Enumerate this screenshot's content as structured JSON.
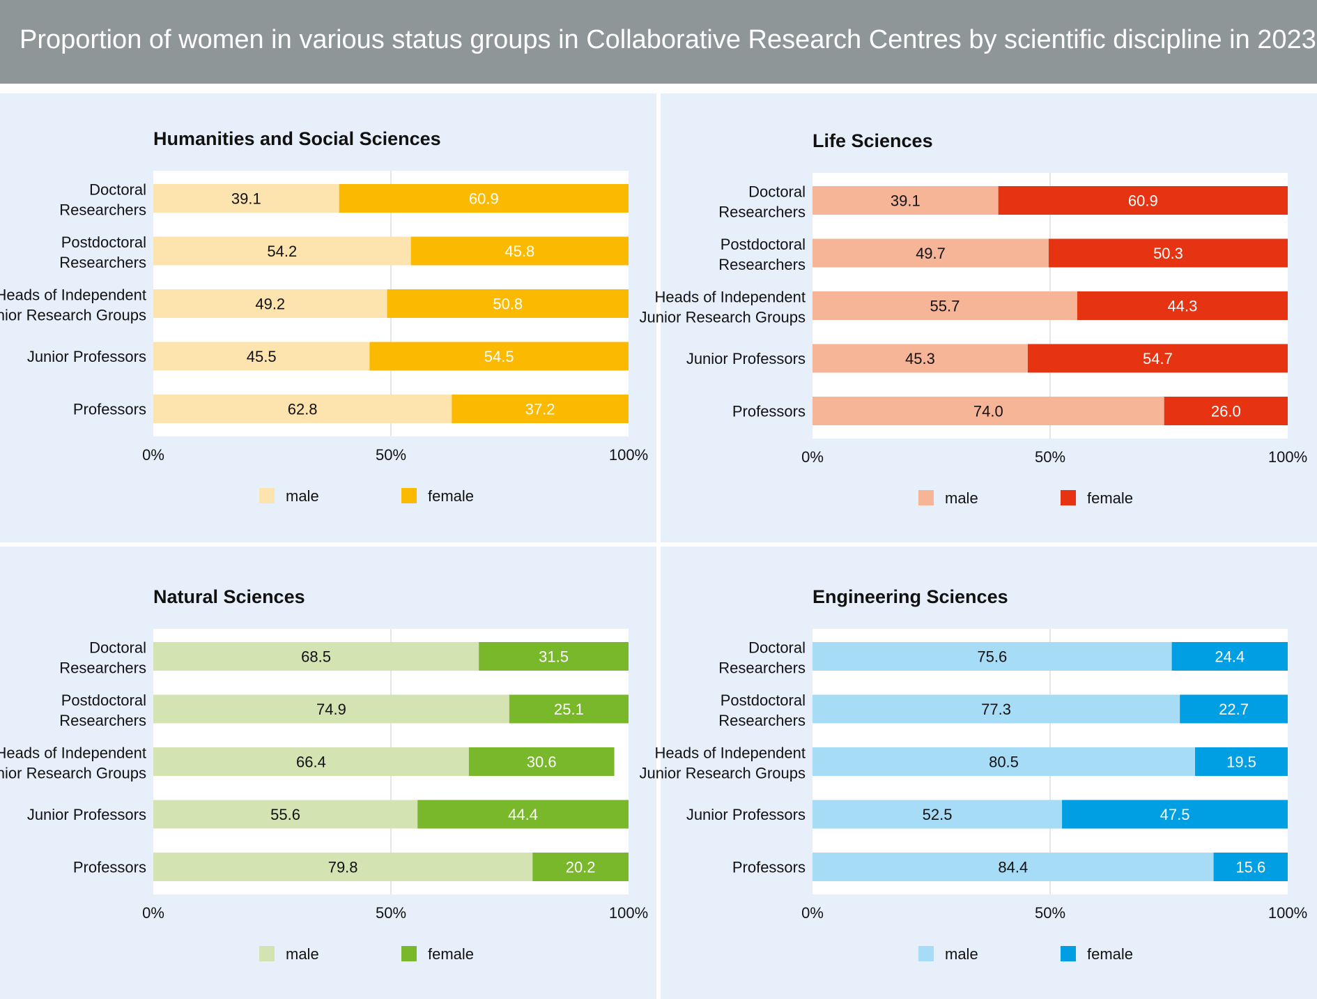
{
  "title": "Proportion of women in various status groups in Collaborative Research Centres by scientific discipline in 2023",
  "chart_data": [
    {
      "type": "bar",
      "stacked": true,
      "orientation": "horizontal",
      "title": "Humanities and Social Sciences",
      "categories": [
        "Doctoral\nResearchers",
        "Postdoctoral\nResearchers",
        "Heads of Independent\nJunior Research Groups",
        "Junior Professors",
        "Professors"
      ],
      "series": [
        {
          "name": "male",
          "color": "#fde3ad",
          "values": [
            39.1,
            54.2,
            49.2,
            45.5,
            62.8
          ],
          "labels": [
            "39.1",
            "54.2",
            "49.2",
            "45.5",
            "62.8"
          ]
        },
        {
          "name": "female",
          "color": "#fbb900",
          "values": [
            60.9,
            45.8,
            50.8,
            54.5,
            37.2
          ],
          "labels": [
            "60.9",
            "45.8",
            "50.8",
            "54.5",
            "37.2"
          ]
        }
      ],
      "xlim": [
        0,
        100
      ],
      "xticks": [
        "0%",
        "50%",
        "100%"
      ],
      "legend": "bottom",
      "grid": true
    },
    {
      "type": "bar",
      "stacked": true,
      "orientation": "horizontal",
      "title": "Life Sciences",
      "categories": [
        "Doctoral\nResearchers",
        "Postdoctoral\nResearchers",
        "Heads of Independent\nJunior Research Groups",
        "Junior Professors",
        "Professors"
      ],
      "series": [
        {
          "name": "male",
          "color": "#f7b597",
          "values": [
            39.1,
            49.7,
            55.7,
            45.3,
            74.0
          ],
          "labels": [
            "39.1",
            "49.7",
            "55.7",
            "45.3",
            "74.0"
          ]
        },
        {
          "name": "female",
          "color": "#e63312",
          "values": [
            60.9,
            50.3,
            44.3,
            54.7,
            26.0
          ],
          "labels": [
            "60.9",
            "50.3",
            "44.3",
            "54.7",
            "26.0"
          ]
        }
      ],
      "xlim": [
        0,
        100
      ],
      "xticks": [
        "0%",
        "50%",
        "100%"
      ],
      "legend": "bottom",
      "grid": true
    },
    {
      "type": "bar",
      "stacked": true,
      "orientation": "horizontal",
      "title": "Natural Sciences",
      "categories": [
        "Doctoral\nResearchers",
        "Postdoctoral\nResearchers",
        "Heads of Independent\nJunior Research Groups",
        "Junior Professors",
        "Professors"
      ],
      "series": [
        {
          "name": "male",
          "color": "#d3e3b2",
          "values": [
            68.5,
            74.9,
            66.4,
            55.6,
            79.8
          ],
          "labels": [
            "68.5",
            "74.9",
            "66.4",
            "55.6",
            "79.8"
          ]
        },
        {
          "name": "female",
          "color": "#78b82a",
          "values": [
            31.5,
            25.1,
            30.6,
            44.4,
            20.2
          ],
          "labels": [
            "31.5",
            "25.1",
            "30.6",
            "44.4",
            "20.2"
          ]
        }
      ],
      "xlim": [
        0,
        100
      ],
      "xticks": [
        "0%",
        "50%",
        "100%"
      ],
      "legend": "bottom",
      "grid": true
    },
    {
      "type": "bar",
      "stacked": true,
      "orientation": "horizontal",
      "title": "Engineering Sciences",
      "categories": [
        "Doctoral\nResearchers",
        "Postdoctoral\nResearchers",
        "Heads of Independent\nJunior Research Groups",
        "Junior Professors",
        "Professors"
      ],
      "series": [
        {
          "name": "male",
          "color": "#a7dcf7",
          "values": [
            75.6,
            77.3,
            80.5,
            52.5,
            84.4
          ],
          "labels": [
            "75.6",
            "77.3",
            "80.5",
            "52.5",
            "84.4"
          ]
        },
        {
          "name": "female",
          "color": "#009fe3",
          "values": [
            24.4,
            22.7,
            19.5,
            47.5,
            15.6
          ],
          "labels": [
            "24.4",
            "22.7",
            "19.5",
            "47.5",
            "15.6"
          ]
        }
      ],
      "xlim": [
        0,
        100
      ],
      "xticks": [
        "0%",
        "50%",
        "100%"
      ],
      "legend": "bottom",
      "grid": true
    }
  ],
  "colors": {
    "header_background": "#8e9698",
    "panel_background": "#e7f0fa"
  }
}
